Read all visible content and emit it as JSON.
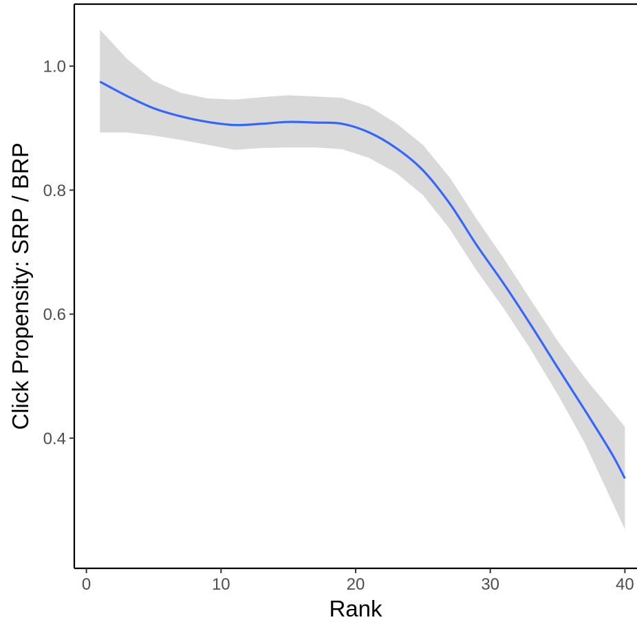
{
  "chart_data": {
    "type": "line",
    "title": "",
    "xlabel": "Rank",
    "ylabel": "Click Propensity: SRP / BRP",
    "xlim": [
      -0.9,
      40.9
    ],
    "ylim": [
      0.19,
      1.1
    ],
    "x_ticks": [
      0,
      10,
      20,
      30,
      40
    ],
    "x_tick_labels": [
      "0",
      "10",
      "20",
      "30",
      "40"
    ],
    "y_ticks": [
      0.4,
      0.6,
      0.8,
      1.0
    ],
    "y_tick_labels": [
      "0.4",
      "0.6",
      "0.8",
      "1.0"
    ],
    "grid": false,
    "series": [
      {
        "x": [
          1,
          3,
          5,
          7,
          9,
          11,
          13,
          15,
          17,
          19,
          21,
          23,
          25,
          27,
          29,
          31,
          33,
          35,
          37,
          39,
          40
        ],
        "y": [
          0.975,
          0.952,
          0.932,
          0.919,
          0.91,
          0.905,
          0.907,
          0.91,
          0.909,
          0.907,
          0.893,
          0.868,
          0.832,
          0.778,
          0.711,
          0.649,
          0.583,
          0.514,
          0.446,
          0.376,
          0.335
        ],
        "lower": [
          0.893,
          0.893,
          0.888,
          0.881,
          0.873,
          0.865,
          0.868,
          0.869,
          0.869,
          0.866,
          0.852,
          0.828,
          0.792,
          0.737,
          0.67,
          0.609,
          0.543,
          0.471,
          0.393,
          0.3,
          0.253
        ],
        "upper": [
          1.059,
          1.012,
          0.976,
          0.957,
          0.948,
          0.946,
          0.95,
          0.953,
          0.951,
          0.949,
          0.935,
          0.908,
          0.873,
          0.82,
          0.753,
          0.69,
          0.623,
          0.557,
          0.498,
          0.445,
          0.418
        ]
      }
    ],
    "colors": {
      "line": "#3366FF",
      "band": "#D9D9D9",
      "axis": "#000000"
    }
  }
}
